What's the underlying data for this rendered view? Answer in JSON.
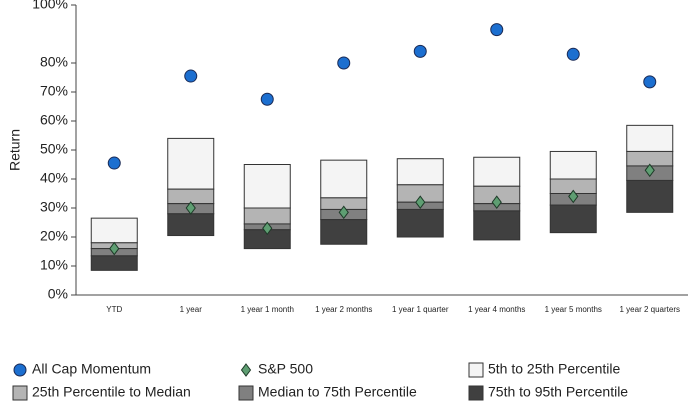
{
  "chart_data": {
    "type": "range",
    "y_label": "Return",
    "categories": [
      "YTD",
      "1 year",
      "1 year 1 month",
      "1 year 2 months",
      "1 year 1 quarter",
      "1 year 4 months",
      "1 year 5 months",
      "1 year 2 quarters"
    ],
    "ylim": [
      0,
      100
    ],
    "yticks": [
      {
        "value": 0,
        "label": "0%"
      },
      {
        "value": 10,
        "label": "10%"
      },
      {
        "value": 20,
        "label": "20%"
      },
      {
        "value": 30,
        "label": "30%"
      },
      {
        "value": 40,
        "label": "40%"
      },
      {
        "value": 50,
        "label": "50%"
      },
      {
        "value": 60,
        "label": "60%"
      },
      {
        "value": 70,
        "label": "70%"
      },
      {
        "value": 80,
        "label": "80%"
      },
      {
        "value": 100,
        "label": "100%"
      }
    ],
    "ranges": [
      {
        "name": "5th to 25th Percentile",
        "color": "#f4f4f4",
        "low": [
          18,
          36.5,
          30,
          33.5,
          38,
          37.5,
          40,
          49.5
        ],
        "high": [
          26.5,
          54,
          45,
          46.5,
          47,
          47.5,
          49.5,
          58.5
        ]
      },
      {
        "name": "25th Percentile to Median",
        "color": "#b4b4b4",
        "low": [
          16,
          31.5,
          24.5,
          29.5,
          32,
          31.5,
          35,
          44.5
        ],
        "high": [
          18,
          36.5,
          30,
          33.5,
          38,
          37.5,
          40,
          49.5
        ]
      },
      {
        "name": "Median to 75th Percentile",
        "color": "#808080",
        "low": [
          13.5,
          28,
          22.5,
          26,
          29.5,
          29,
          31,
          39.5
        ],
        "high": [
          16,
          31.5,
          24.5,
          29.5,
          32,
          31.5,
          35,
          44.5
        ]
      },
      {
        "name": "75th to 95th Percentile",
        "color": "#404040",
        "low": [
          8.5,
          20.5,
          16,
          17.5,
          20,
          19,
          21.5,
          28.5
        ],
        "high": [
          13.5,
          28,
          22.5,
          26,
          29.5,
          29,
          31,
          39.5
        ]
      }
    ],
    "series": [
      {
        "name": "All Cap Momentum",
        "color": "#1c6fd0",
        "marker": "circle",
        "values": [
          45.5,
          75.5,
          67.5,
          80,
          84,
          91.5,
          83,
          73.5
        ]
      },
      {
        "name": "S&P 500",
        "color": "#5e9e72",
        "marker": "diamond",
        "values": [
          16,
          30,
          23,
          28.5,
          32,
          32,
          34,
          43
        ]
      }
    ]
  }
}
